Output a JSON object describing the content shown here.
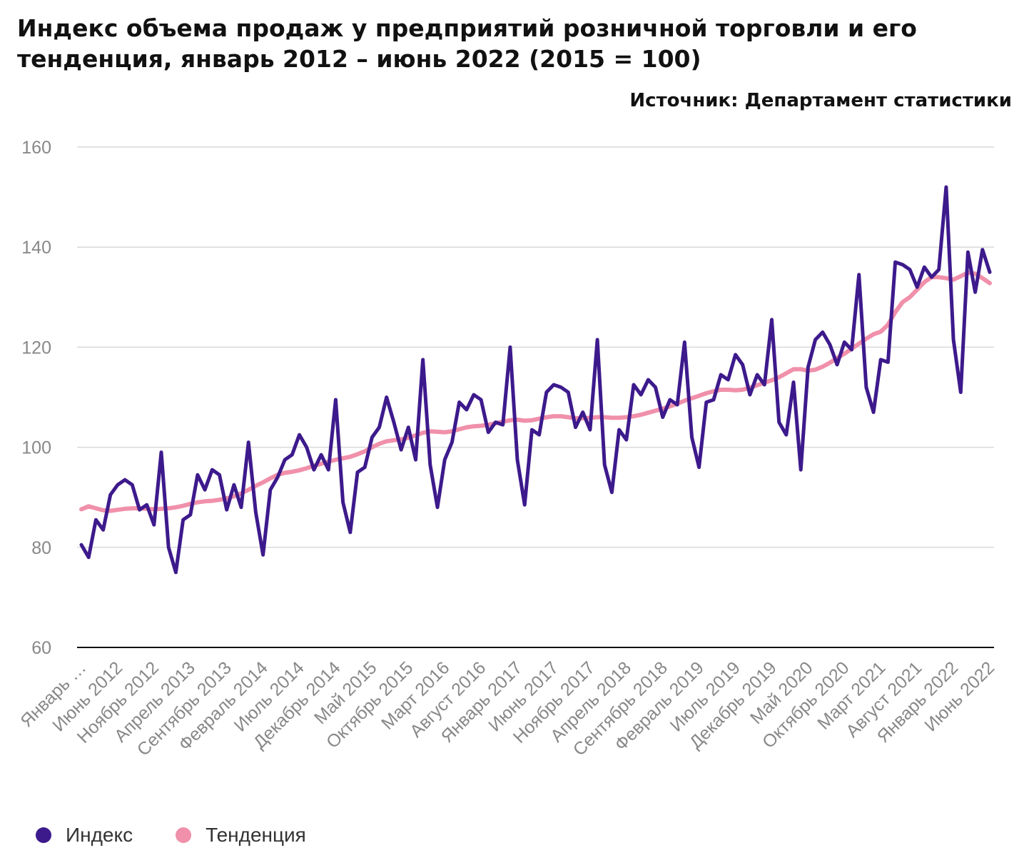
{
  "title": "Индекс объема продаж у предприятий розничной торговли и его тенденция, январь 2012 – июнь 2022 (2015 = 100)",
  "source": "Источник: Департамент статистики",
  "chart_data": {
    "type": "line",
    "ylim": [
      60,
      160
    ],
    "yticks": [
      60,
      80,
      100,
      120,
      140,
      160
    ],
    "grid": true,
    "legend": "bottom-left",
    "x_tick_labels": [
      "Январь …",
      "Июнь 2012",
      "Ноябрь 2012",
      "Апрель 2013",
      "Сентябрь 2013",
      "Февраль 2014",
      "Июль 2014",
      "Декабрь 2014",
      "Май 2015",
      "Октябрь 2015",
      "Март 2016",
      "Август 2016",
      "Январь 2017",
      "Июнь 2017",
      "Ноябрь 2017",
      "Апрель 2018",
      "Сентябрь 2018",
      "Февраль 2019",
      "Июль 2019",
      "Декабрь 2019",
      "Май 2020",
      "Октябрь 2020",
      "Март 2021",
      "Август 2021",
      "Январь 2022",
      "Июнь 2022"
    ],
    "series": [
      {
        "name": "Индекс",
        "color": "#3d1a8c",
        "values": [
          80.5,
          78.0,
          85.5,
          83.5,
          90.5,
          92.5,
          93.5,
          92.5,
          87.5,
          88.5,
          84.5,
          99.0,
          80.0,
          75.0,
          85.5,
          86.5,
          94.5,
          91.5,
          95.5,
          94.5,
          87.5,
          92.5,
          88.0,
          101.0,
          87.0,
          78.5,
          91.5,
          94.0,
          97.5,
          98.5,
          102.5,
          100.0,
          95.5,
          98.5,
          95.5,
          109.5,
          89.0,
          83.0,
          95.0,
          96.0,
          102.0,
          104.0,
          110.0,
          105.0,
          99.5,
          104.0,
          97.5,
          117.5,
          96.5,
          88.0,
          97.5,
          101.0,
          109.0,
          107.5,
          110.5,
          109.5,
          103.0,
          105.0,
          104.5,
          120.0,
          97.5,
          88.5,
          103.5,
          102.5,
          111.0,
          112.5,
          112.0,
          111.0,
          104.0,
          107.0,
          103.5,
          121.5,
          96.5,
          91.0,
          103.5,
          101.5,
          112.5,
          110.5,
          113.5,
          112.0,
          106.0,
          109.5,
          108.5,
          121.0,
          102.0,
          96.0,
          109.0,
          109.5,
          114.5,
          113.5,
          118.5,
          116.5,
          110.5,
          114.5,
          112.5,
          125.5,
          105.0,
          102.5,
          113.0,
          95.5,
          116.0,
          121.5,
          123.0,
          120.5,
          116.5,
          121.0,
          119.5,
          134.5,
          112.0,
          107.0,
          117.5,
          117.0,
          137.0,
          136.5,
          135.5,
          132.0,
          136.0,
          134.0,
          135.5,
          152.0,
          121.5,
          111.0,
          139.0,
          131.0,
          139.5,
          135.0
        ]
      },
      {
        "name": "Тенденция",
        "color": "#f090aa",
        "values": [
          87.6,
          88.2,
          87.8,
          87.4,
          87.3,
          87.5,
          87.7,
          87.8,
          87.8,
          87.7,
          87.6,
          87.7,
          87.8,
          88.0,
          88.3,
          88.7,
          89.0,
          89.2,
          89.3,
          89.5,
          89.8,
          90.2,
          90.8,
          91.5,
          92.3,
          93.0,
          93.8,
          94.5,
          94.9,
          95.1,
          95.4,
          95.8,
          96.3,
          96.7,
          97.1,
          97.5,
          97.8,
          98.1,
          98.6,
          99.2,
          100.0,
          100.7,
          101.2,
          101.4,
          101.6,
          101.9,
          102.4,
          102.9,
          103.2,
          103.1,
          103.0,
          103.2,
          103.6,
          104.0,
          104.2,
          104.3,
          104.5,
          104.8,
          105.1,
          105.4,
          105.5,
          105.3,
          105.4,
          105.7,
          106.0,
          106.2,
          106.2,
          106.0,
          105.8,
          105.8,
          105.9,
          106.0,
          106.0,
          105.9,
          105.9,
          106.0,
          106.2,
          106.5,
          106.9,
          107.3,
          107.7,
          108.2,
          108.7,
          109.3,
          109.8,
          110.3,
          110.8,
          111.2,
          111.5,
          111.5,
          111.4,
          111.5,
          111.9,
          112.4,
          112.9,
          113.4,
          114.0,
          114.8,
          115.6,
          115.6,
          115.3,
          115.5,
          116.1,
          116.9,
          117.8,
          118.7,
          119.7,
          120.7,
          121.7,
          122.6,
          123.1,
          124.5,
          127.0,
          129.0,
          130.0,
          131.5,
          133.0,
          134.0,
          134.0,
          133.8,
          133.5,
          134.2,
          134.9,
          134.7,
          133.8,
          132.8
        ]
      }
    ]
  }
}
